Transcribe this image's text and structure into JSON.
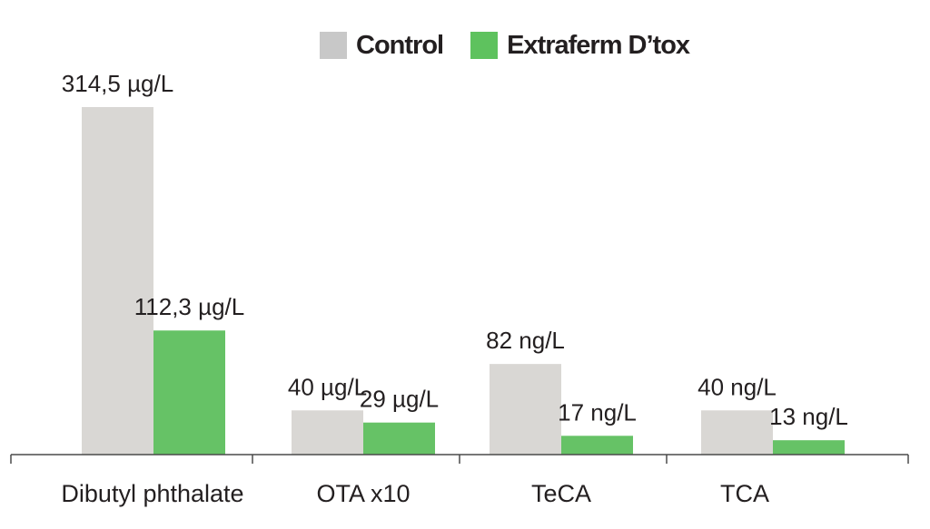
{
  "chart_data": {
    "type": "bar",
    "title": "",
    "xlabel": "",
    "ylabel": "",
    "categories": [
      "Dibutyl phthalate",
      "OTA x10",
      "TeCA",
      "TCA"
    ],
    "ylim": [
      0,
      330
    ],
    "series": [
      {
        "name": "Control",
        "color": "#d9d7d4",
        "values": [
          314.5,
          40,
          82,
          40
        ],
        "labels": [
          "314,5 µg/L",
          "40 µg/L",
          "82 ng/L",
          "40 ng/L"
        ]
      },
      {
        "name": "Extraferm D’tox",
        "color": "#66c266",
        "values": [
          112.3,
          29,
          17,
          13
        ],
        "labels": [
          "112,3 µg/L",
          "29 µg/L",
          "17 ng/L",
          "13 ng/L"
        ]
      }
    ],
    "grid": false,
    "legend_position": "top-center"
  },
  "legend": {
    "items": [
      {
        "label": "Control",
        "color": "#c8c8c8"
      },
      {
        "label": "Extraferm D’tox",
        "color": "#5ec25e"
      }
    ]
  }
}
